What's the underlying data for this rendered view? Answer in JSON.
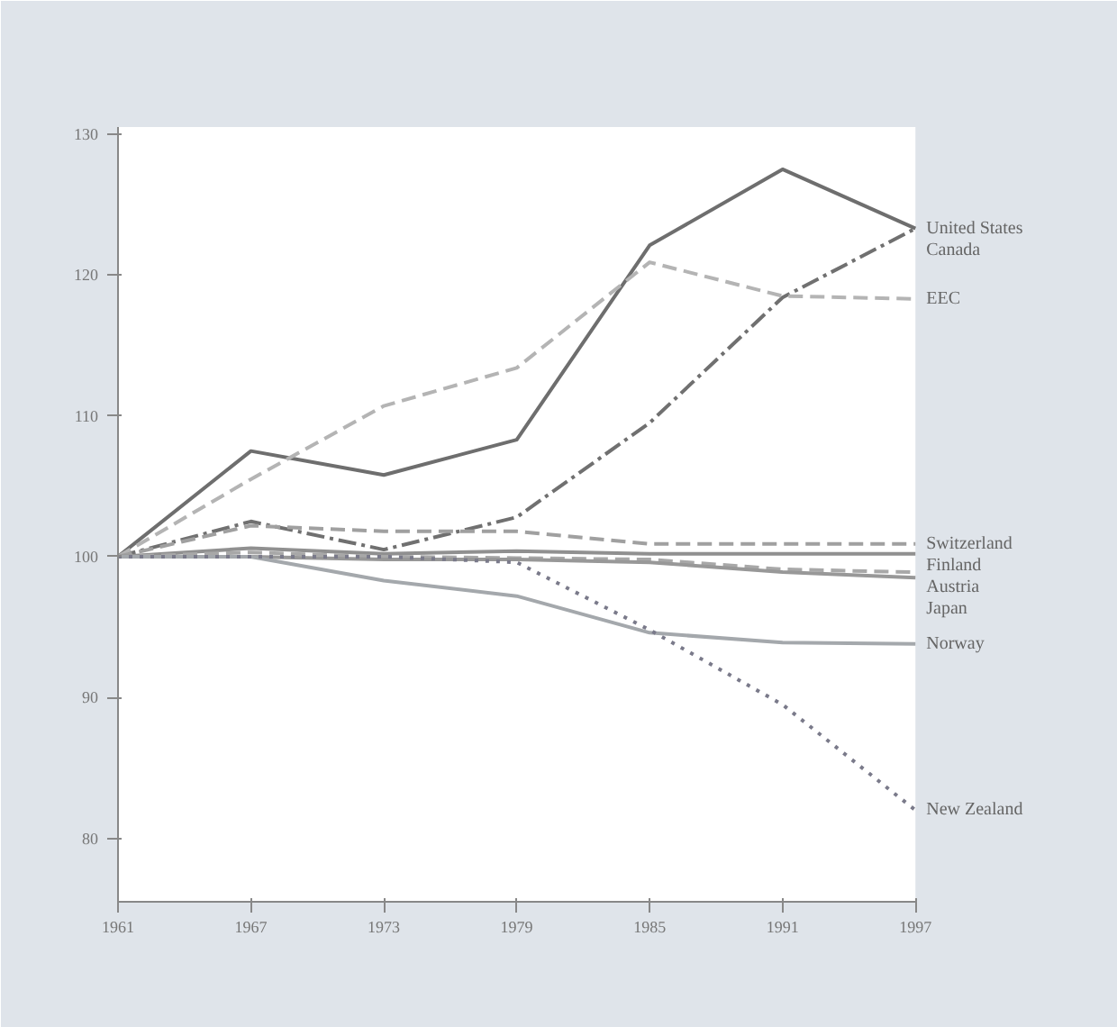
{
  "chart_data": {
    "type": "line",
    "x": [
      1961,
      1967,
      1973,
      1979,
      1985,
      1991,
      1997
    ],
    "xlim": [
      1961,
      1997
    ],
    "xticks": [
      1961,
      1967,
      1973,
      1979,
      1985,
      1991,
      1997
    ],
    "ylim": [
      75.5,
      130.5
    ],
    "yticks": [
      80,
      90,
      100,
      110,
      120,
      130
    ],
    "grid": false,
    "series": [
      {
        "name": "United States",
        "color": "#6e6e6e",
        "line_style": "solid",
        "values": [
          100,
          107.5,
          105.8,
          108.3,
          122.1,
          127.5,
          123.3
        ]
      },
      {
        "name": "Canada",
        "color": "#707070",
        "line_style": "dashdot",
        "values": [
          100,
          102.5,
          100.5,
          102.8,
          109.5,
          118.4,
          123.3
        ]
      },
      {
        "name": "EEC",
        "color": "#b4b4b4",
        "line_style": "dashed",
        "values": [
          100,
          105.5,
          110.7,
          113.4,
          120.9,
          118.5,
          118.3
        ]
      },
      {
        "name": "Switzerland",
        "color": "#a0a0a0",
        "line_style": "dashed",
        "values": [
          100,
          102.2,
          101.8,
          101.8,
          100.9,
          100.9,
          100.9
        ]
      },
      {
        "name": "Finland",
        "color": "#909090",
        "line_style": "solid",
        "values": [
          100,
          100.6,
          100.2,
          100.4,
          100.2,
          100.2,
          100.2
        ]
      },
      {
        "name": "Austria",
        "color": "#a8a8a8",
        "line_style": "dashed",
        "values": [
          100,
          100.3,
          100,
          99.9,
          99.8,
          99.1,
          98.9
        ]
      },
      {
        "name": "Japan",
        "color": "#989898",
        "line_style": "solid",
        "values": [
          100,
          100,
          99.8,
          99.8,
          99.6,
          98.9,
          98.5
        ]
      },
      {
        "name": "Norway",
        "color": "#a4a8ac",
        "line_style": "solid",
        "values": [
          100,
          100,
          98.3,
          97.2,
          94.6,
          93.9,
          93.8
        ]
      },
      {
        "name": "New Zealand",
        "color": "#7a7a8a",
        "line_style": "dotted",
        "values": [
          100,
          100,
          100,
          99.6,
          94.8,
          89.5,
          82.0
        ]
      }
    ]
  }
}
